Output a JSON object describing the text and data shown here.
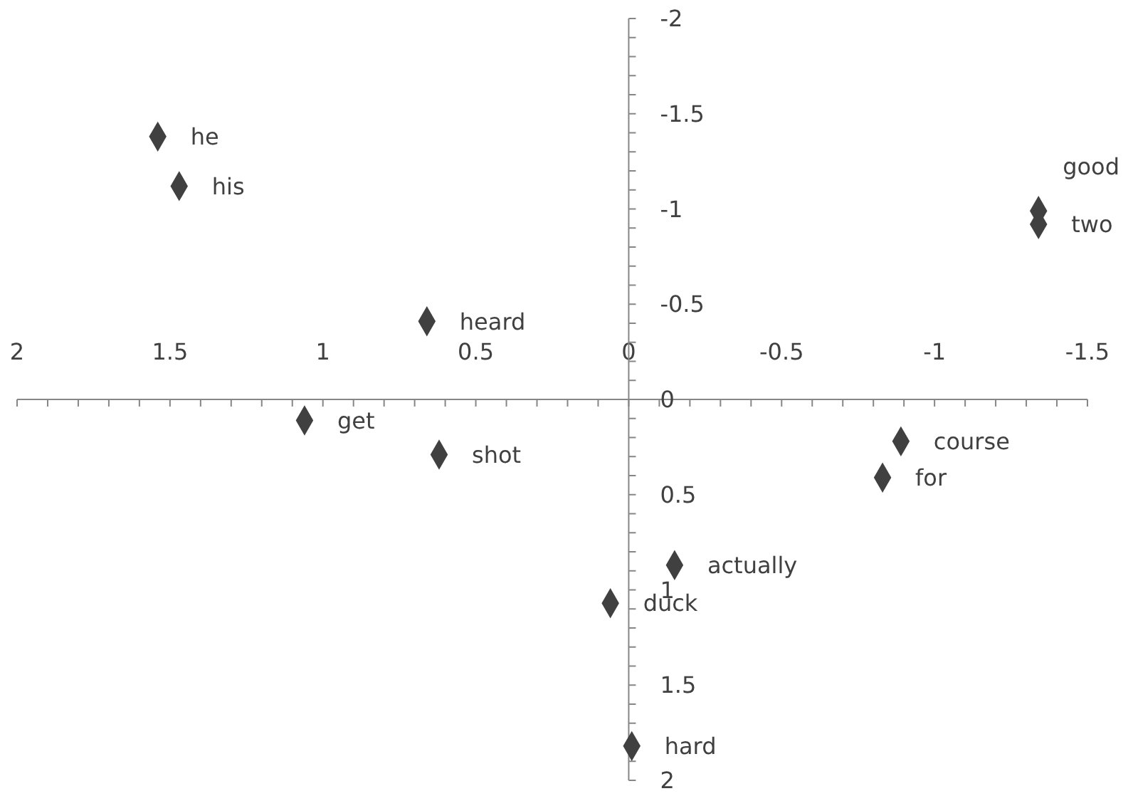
{
  "chart_data": {
    "type": "scatter",
    "marker": "diamond",
    "grid": false,
    "xlim": [
      2,
      -1.5
    ],
    "ylim": [
      2,
      -2
    ],
    "xticks": [
      2,
      1.5,
      1,
      0.5,
      0,
      -0.5,
      -1,
      -1.5
    ],
    "yticks": [
      -2,
      -1.5,
      -1,
      -0.5,
      0,
      0.5,
      1,
      1.5,
      2
    ],
    "series": [
      {
        "color": "#404040",
        "x": [
          1.54,
          1.47,
          -1.34,
          -1.34,
          0.66,
          1.06,
          0.62,
          -0.89,
          -0.83,
          -0.15,
          0.06,
          -0.01
        ],
        "values": [
          -1.38,
          -1.12,
          -0.99,
          -0.92,
          -0.41,
          0.11,
          0.29,
          0.22,
          0.41,
          0.87,
          1.07,
          1.82
        ]
      }
    ],
    "annotations": [
      {
        "text": "he",
        "x": 1.54,
        "y": -1.38
      },
      {
        "text": "his",
        "x": 1.47,
        "y": -1.12
      },
      {
        "text": "good",
        "x": -1.34,
        "y": -0.99
      },
      {
        "text": "two",
        "x": -1.34,
        "y": -0.92
      },
      {
        "text": "heard",
        "x": 0.66,
        "y": -0.41
      },
      {
        "text": "get",
        "x": 1.06,
        "y": 0.11
      },
      {
        "text": "shot",
        "x": 0.62,
        "y": 0.29
      },
      {
        "text": "course",
        "x": -0.89,
        "y": 0.22
      },
      {
        "text": "for",
        "x": -0.83,
        "y": 0.41
      },
      {
        "text": "actually",
        "x": -0.15,
        "y": 0.87
      },
      {
        "text": "duck",
        "x": 0.06,
        "y": 1.07
      },
      {
        "text": "hard",
        "x": -0.01,
        "y": 1.82
      }
    ]
  }
}
